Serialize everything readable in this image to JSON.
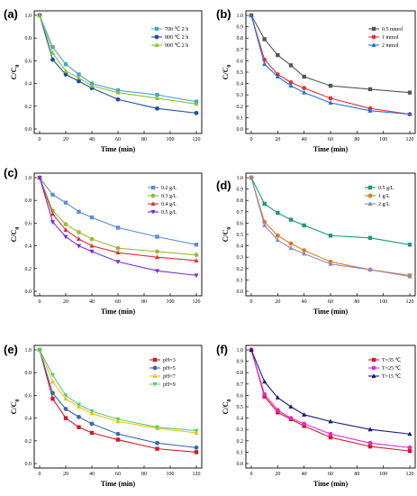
{
  "chart_data": [
    {
      "type": "line",
      "label": "(a)",
      "xlabel": "Time (min)",
      "ylabel": "C/C0",
      "xlim": [
        0,
        120
      ],
      "ylim": [
        0,
        1.0
      ],
      "xticks": [
        0,
        20,
        40,
        60,
        80,
        100,
        120
      ],
      "yticks": [
        0,
        0.2,
        0.4,
        0.6,
        0.8,
        1.0
      ],
      "legend": "top-right",
      "x": [
        0,
        10,
        20,
        30,
        40,
        60,
        90,
        120
      ],
      "series": [
        {
          "name": "700 ℃ 2 h",
          "color": "#4fa3c7",
          "marker": "square",
          "values": [
            1.0,
            0.72,
            0.57,
            0.48,
            0.4,
            0.34,
            0.3,
            0.24
          ]
        },
        {
          "name": "800 ℃ 2 h",
          "color": "#1f4e9a",
          "marker": "circle",
          "values": [
            1.0,
            0.61,
            0.48,
            0.42,
            0.36,
            0.26,
            0.18,
            0.14
          ]
        },
        {
          "name": "900 ℃ 2 h",
          "color": "#8ac23a",
          "marker": "triangle",
          "values": [
            1.0,
            0.67,
            0.51,
            0.45,
            0.38,
            0.32,
            0.27,
            0.22
          ]
        }
      ]
    },
    {
      "type": "line",
      "label": "(b)",
      "xlabel": "Time (min)",
      "ylabel": "C/C0",
      "xlim": [
        0,
        120
      ],
      "ylim": [
        0,
        1.0
      ],
      "xticks": [
        0,
        20,
        40,
        60,
        80,
        100,
        120
      ],
      "yticks": [
        0,
        0.1,
        0.2,
        0.3,
        0.4,
        0.5,
        0.6,
        0.7,
        0.8,
        0.9,
        1.0
      ],
      "legend": "top-right",
      "x": [
        0,
        10,
        20,
        30,
        40,
        60,
        90,
        120
      ],
      "series": [
        {
          "name": "0.5 mmol",
          "color": "#555555",
          "marker": "square",
          "values": [
            1.0,
            0.79,
            0.65,
            0.56,
            0.46,
            0.38,
            0.35,
            0.32
          ]
        },
        {
          "name": "1 mmol",
          "color": "#e0303a",
          "marker": "circle",
          "values": [
            1.0,
            0.61,
            0.48,
            0.41,
            0.36,
            0.27,
            0.18,
            0.13
          ]
        },
        {
          "name": "2 mmol",
          "color": "#2a6fd4",
          "marker": "triangle",
          "values": [
            1.0,
            0.57,
            0.46,
            0.38,
            0.32,
            0.23,
            0.16,
            0.13
          ]
        }
      ]
    },
    {
      "type": "line",
      "label": "(c)",
      "xlabel": "Time (min)",
      "ylabel": "C/C0",
      "xlim": [
        0,
        120
      ],
      "ylim": [
        0,
        1.0
      ],
      "xticks": [
        0,
        20,
        40,
        60,
        80,
        100,
        120
      ],
      "yticks": [
        0,
        0.2,
        0.4,
        0.6,
        0.8,
        1.0
      ],
      "legend": "top-right",
      "x": [
        0,
        10,
        20,
        30,
        40,
        60,
        90,
        120
      ],
      "series": [
        {
          "name": "0.2 g/L",
          "color": "#5b8fd6",
          "marker": "square",
          "values": [
            1.0,
            0.85,
            0.78,
            0.7,
            0.65,
            0.56,
            0.48,
            0.41
          ]
        },
        {
          "name": "0.3 g/L",
          "color": "#9aba3a",
          "marker": "circle",
          "values": [
            1.0,
            0.71,
            0.59,
            0.52,
            0.46,
            0.38,
            0.35,
            0.32
          ]
        },
        {
          "name": "0.4 g/L",
          "color": "#e0303a",
          "marker": "triangle",
          "values": [
            1.0,
            0.68,
            0.54,
            0.46,
            0.4,
            0.34,
            0.3,
            0.27
          ]
        },
        {
          "name": "0.5 g/L",
          "color": "#7a2fd0",
          "marker": "triangle-down",
          "values": [
            1.0,
            0.61,
            0.48,
            0.4,
            0.35,
            0.26,
            0.18,
            0.14
          ]
        }
      ]
    },
    {
      "type": "line",
      "label": "(d)",
      "xlabel": "Time (min)",
      "ylabel": "C/C0",
      "xlim": [
        0,
        120
      ],
      "ylim": [
        0,
        1.0
      ],
      "xticks": [
        0,
        20,
        40,
        60,
        80,
        100,
        120
      ],
      "yticks": [
        0,
        0.1,
        0.2,
        0.3,
        0.4,
        0.5,
        0.6,
        0.7,
        0.8,
        0.9,
        1.0
      ],
      "legend": "top-right",
      "x": [
        0,
        10,
        20,
        30,
        40,
        60,
        90,
        120
      ],
      "series": [
        {
          "name": "0.5 g/L",
          "color": "#1a9a7a",
          "marker": "square",
          "values": [
            1.0,
            0.77,
            0.69,
            0.63,
            0.58,
            0.49,
            0.47,
            0.41
          ]
        },
        {
          "name": "1 g/L",
          "color": "#e07a2a",
          "marker": "circle",
          "values": [
            1.0,
            0.61,
            0.49,
            0.42,
            0.36,
            0.26,
            0.19,
            0.14
          ]
        },
        {
          "name": "2 g/L",
          "color": "#8a8ab8",
          "marker": "triangle",
          "values": [
            1.0,
            0.58,
            0.45,
            0.38,
            0.33,
            0.24,
            0.19,
            0.13
          ]
        }
      ]
    },
    {
      "type": "line",
      "label": "(e)",
      "xlabel": "Time (min)",
      "ylabel": "C/C0",
      "xlim": [
        0,
        120
      ],
      "ylim": [
        0,
        1.0
      ],
      "xticks": [
        0,
        20,
        40,
        60,
        80,
        100,
        120
      ],
      "yticks": [
        0,
        0.2,
        0.4,
        0.6,
        0.8,
        1.0
      ],
      "legend": "top-right",
      "x": [
        0,
        10,
        20,
        30,
        40,
        60,
        90,
        120
      ],
      "series": [
        {
          "name": "pH=3",
          "color": "#cc1a2a",
          "marker": "square",
          "values": [
            1.0,
            0.57,
            0.4,
            0.32,
            0.27,
            0.21,
            0.13,
            0.1
          ]
        },
        {
          "name": "pH=5",
          "color": "#3a6aa8",
          "marker": "circle",
          "values": [
            1.0,
            0.62,
            0.48,
            0.41,
            0.35,
            0.26,
            0.18,
            0.14
          ]
        },
        {
          "name": "pH=7",
          "color": "#f0c020",
          "marker": "triangle",
          "values": [
            1.0,
            0.72,
            0.57,
            0.5,
            0.44,
            0.37,
            0.31,
            0.27
          ]
        },
        {
          "name": "pH=9",
          "color": "#5ad06a",
          "marker": "triangle-down",
          "values": [
            1.0,
            0.78,
            0.6,
            0.52,
            0.46,
            0.39,
            0.32,
            0.29
          ]
        }
      ]
    },
    {
      "type": "line",
      "label": "(f)",
      "xlabel": "Time (min)",
      "ylabel": "C/C0",
      "xlim": [
        0,
        120
      ],
      "ylim": [
        0,
        1.0
      ],
      "xticks": [
        0,
        20,
        40,
        60,
        80,
        100,
        120
      ],
      "yticks": [
        0,
        0.1,
        0.2,
        0.3,
        0.4,
        0.5,
        0.6,
        0.7,
        0.8,
        0.9,
        1.0
      ],
      "legend": "top-right",
      "x": [
        0,
        10,
        20,
        30,
        40,
        60,
        90,
        120
      ],
      "series": [
        {
          "name": "T=35 ℃",
          "color": "#cc1a2a",
          "marker": "square",
          "values": [
            1.0,
            0.59,
            0.45,
            0.39,
            0.33,
            0.23,
            0.15,
            0.11
          ]
        },
        {
          "name": "T=25 ℃",
          "color": "#e02ad0",
          "marker": "circle",
          "values": [
            1.0,
            0.61,
            0.47,
            0.4,
            0.35,
            0.26,
            0.18,
            0.14
          ]
        },
        {
          "name": "T=15 ℃",
          "color": "#1a1a7a",
          "marker": "triangle",
          "values": [
            1.0,
            0.72,
            0.58,
            0.5,
            0.43,
            0.37,
            0.3,
            0.26
          ]
        }
      ]
    }
  ]
}
